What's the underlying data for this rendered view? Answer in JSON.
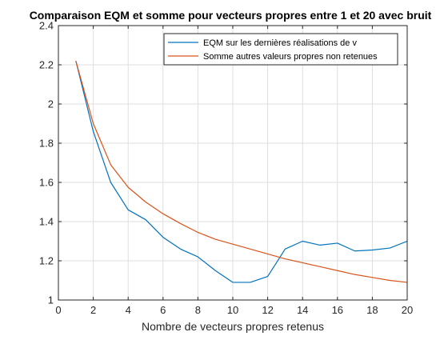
{
  "chart_data": {
    "type": "line",
    "title": "Comparaison EQM et somme pour vecteurs propres entre 1 et 20 avec bruit",
    "xlabel": "Nombre de vecteurs propres retenus",
    "ylabel": "",
    "xlim": [
      0,
      20
    ],
    "ylim": [
      1,
      2.4
    ],
    "xticks": [
      "0",
      "2",
      "4",
      "6",
      "8",
      "10",
      "12",
      "14",
      "16",
      "18",
      "20"
    ],
    "yticks": [
      "1",
      "1.2",
      "1.4",
      "1.6",
      "1.8",
      "2",
      "2.2",
      "2.4"
    ],
    "grid": true,
    "legend_position": "top-right",
    "series": [
      {
        "name": "EQM sur les dernières réalisations de v",
        "color": "#0072BD",
        "x": [
          1,
          2,
          3,
          4,
          5,
          6,
          7,
          8,
          9,
          10,
          11,
          12,
          13,
          14,
          15,
          16,
          17,
          18,
          19,
          20
        ],
        "values": [
          2.22,
          1.86,
          1.6,
          1.46,
          1.41,
          1.32,
          1.26,
          1.22,
          1.15,
          1.09,
          1.09,
          1.12,
          1.26,
          1.3,
          1.28,
          1.29,
          1.25,
          1.255,
          1.265,
          1.3
        ]
      },
      {
        "name": "Somme autres valeurs propres non retenues",
        "color": "#D95319",
        "x": [
          1,
          2,
          3,
          4,
          5,
          6,
          7,
          8,
          9,
          10,
          11,
          12,
          13,
          14,
          15,
          16,
          17,
          18,
          19,
          20
        ],
        "values": [
          2.22,
          1.9,
          1.69,
          1.575,
          1.5,
          1.44,
          1.39,
          1.345,
          1.31,
          1.285,
          1.26,
          1.235,
          1.21,
          1.19,
          1.17,
          1.15,
          1.13,
          1.115,
          1.1,
          1.09
        ]
      }
    ]
  }
}
